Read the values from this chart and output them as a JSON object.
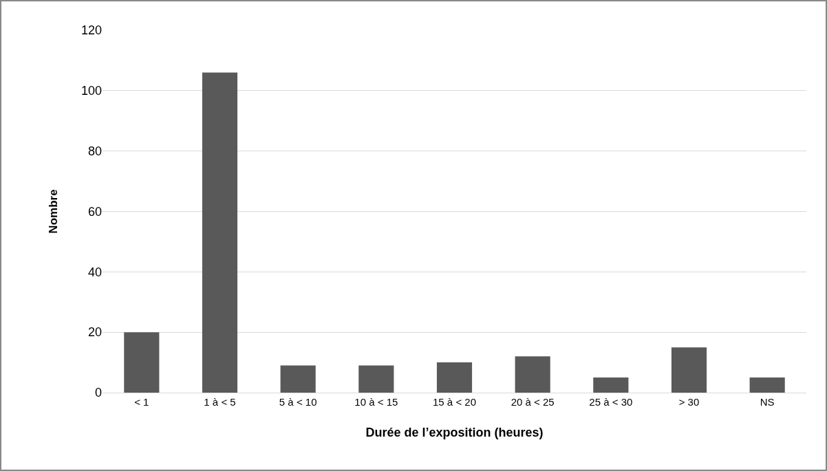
{
  "chart_data": {
    "type": "bar",
    "xlabel": "Durée de l’exposition (heures)",
    "ylabel": "Nombre",
    "categories": [
      "< 1",
      "1 à < 5",
      "5 à < 10",
      "10 à < 15",
      "15 à < 20",
      "20 à < 25",
      "25 à < 30",
      "> 30",
      "NS"
    ],
    "values": [
      20,
      106,
      9,
      9,
      10,
      12,
      5,
      15,
      5
    ],
    "color": "#595959",
    "ylim": [
      0,
      120
    ],
    "yticks": [
      0,
      20,
      40,
      60,
      80,
      100,
      120
    ],
    "grid": "y",
    "legend": false
  }
}
